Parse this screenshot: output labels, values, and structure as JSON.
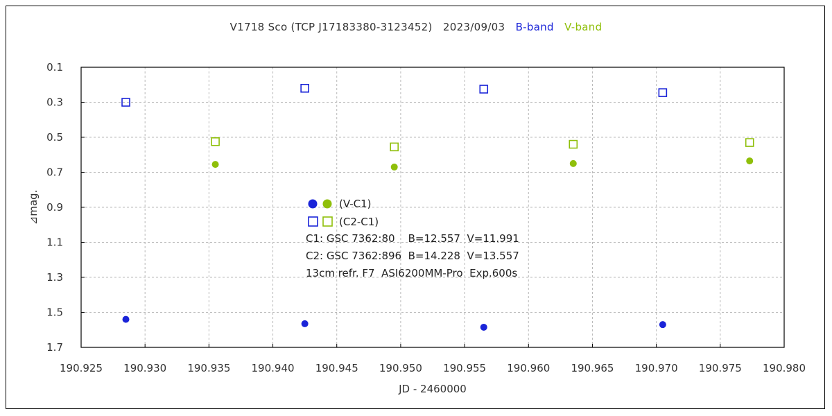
{
  "title": {
    "object": "V1718 Sco (TCP J17183380-3123452)",
    "date": "2023/09/03",
    "b_band_label": "B-band",
    "v_band_label": "V-band"
  },
  "colors": {
    "b_band": "#1a24d8",
    "v_band": "#8fbf0a",
    "grid": "#b8b8b8"
  },
  "chart_data": {
    "type": "scatter",
    "xlabel": "JD - 2460000",
    "ylabel": "⊿mag.",
    "xlim": [
      190.925,
      190.98
    ],
    "ylim": [
      0.1,
      1.7
    ],
    "y_inverted": true,
    "grid": true,
    "x_ticks": [
      "190.925",
      "190.930",
      "190.935",
      "190.940",
      "190.945",
      "190.950",
      "190.955",
      "190.960",
      "190.965",
      "190.970",
      "190.975",
      "190.980"
    ],
    "y_ticks": [
      "0.1",
      "0.3",
      "0.5",
      "0.7",
      "0.9",
      "1.1",
      "1.3",
      "1.5",
      "1.7"
    ],
    "series": [
      {
        "name": "(V-C1)",
        "band": "B",
        "marker": "filled-circle",
        "color": "#1a24d8",
        "x": [
          190.9285,
          190.9425,
          190.9565,
          190.9705
        ],
        "y": [
          1.54,
          1.565,
          1.585,
          1.57
        ]
      },
      {
        "name": "(V-C1)",
        "band": "V",
        "marker": "filled-circle",
        "color": "#8fbf0a",
        "x": [
          190.9355,
          190.9495,
          190.9635,
          190.9773
        ],
        "y": [
          0.655,
          0.67,
          0.65,
          0.635
        ]
      },
      {
        "name": "(C2-C1)",
        "band": "B",
        "marker": "open-square",
        "color": "#1a24d8",
        "x": [
          190.9285,
          190.9425,
          190.9565,
          190.9705
        ],
        "y": [
          0.3,
          0.22,
          0.225,
          0.245
        ]
      },
      {
        "name": "(C2-C1)",
        "band": "V",
        "marker": "open-square",
        "color": "#8fbf0a",
        "x": [
          190.9355,
          190.9495,
          190.9635,
          190.9773
        ],
        "y": [
          0.525,
          0.555,
          0.54,
          0.53
        ]
      }
    ],
    "legend": {
      "filled_label": "(V-C1)",
      "open_label": "(C2-C1)",
      "notes": [
        "C1: GSC 7362:80    B=12.557  V=11.991",
        "C2: GSC 7362:896  B=14.228  V=13.557",
        "13cm refr. F7  ASI6200MM-Pro  Exp.600s"
      ]
    }
  }
}
